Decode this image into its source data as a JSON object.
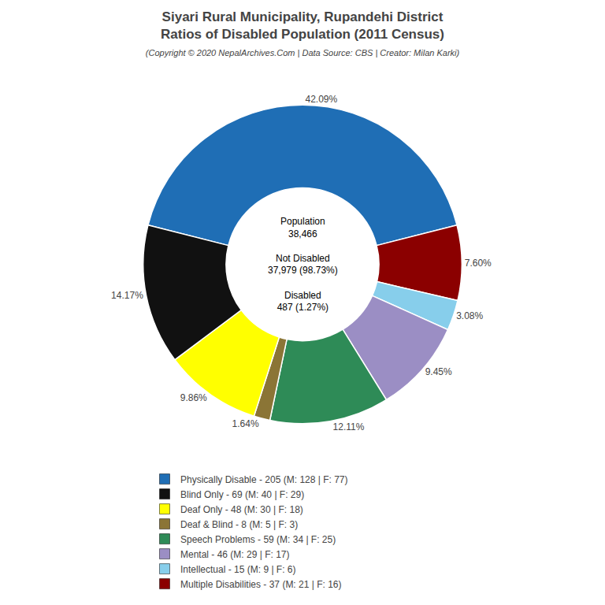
{
  "chart_data": {
    "type": "pie",
    "title": "Siyari Rural Municipality, Rupandehi District\nRatios of Disabled Population (2011 Census)",
    "subtitle": "(Copyright © 2020 NepalArchives.Com | Data Source: CBS | Creator: Milan Karki)",
    "categories": [
      "Physically Disable - 205 (M: 128 | F: 77)",
      "Multiple Disabilities - 37 (M: 21 | F: 16)",
      "Intellectual - 15 (M: 9 | F: 6)",
      "Mental - 46 (M: 29 | F: 17)",
      "Speech Problems - 59 (M: 34 | F: 25)",
      "Deaf & Blind - 8 (M: 5 | F: 3)",
      "Deaf Only - 48 (M: 30 | F: 18)",
      "Blind Only - 69 (M: 40 | F: 29)"
    ],
    "values": [
      42.09,
      7.6,
      3.08,
      9.45,
      12.11,
      1.64,
      9.86,
      14.17
    ],
    "value_labels": [
      "42.09%",
      "7.60%",
      "3.08%",
      "9.45%",
      "12.11%",
      "1.64%",
      "9.86%",
      "14.17%"
    ],
    "colors": [
      "#1f6eb5",
      "#8b0000",
      "#87ceeb",
      "#9b8ec4",
      "#2e8b57",
      "#8b7536",
      "#ffff00",
      "#111111"
    ],
    "data_labels": true,
    "annotations": [
      "Population\n38,466\n\nNot Disabled\n37,979 (98.73%)\n\nDisabled\n487 (1.27%)"
    ],
    "series": [
      {
        "name": "Physically Disable - 205 (M: 128 | F: 77)",
        "color": "#1f6eb5"
      },
      {
        "name": "Blind Only - 69 (M: 40 | F: 29)",
        "color": "#111111"
      },
      {
        "name": "Deaf Only - 48 (M: 30 | F: 18)",
        "color": "#ffff00"
      },
      {
        "name": "Deaf & Blind - 8 (M: 5 | F: 3)",
        "color": "#8b7536"
      },
      {
        "name": "Speech Problems - 59 (M: 34 | F: 25)",
        "color": "#2e8b57"
      },
      {
        "name": "Mental - 46 (M: 29 | F: 17)",
        "color": "#9b8ec4"
      },
      {
        "name": "Intellectual - 15 (M: 9 | F: 6)",
        "color": "#87ceeb"
      },
      {
        "name": "Multiple Disabilities - 37 (M: 21 | F: 16)",
        "color": "#8b0000"
      }
    ],
    "legend": "bottom"
  }
}
